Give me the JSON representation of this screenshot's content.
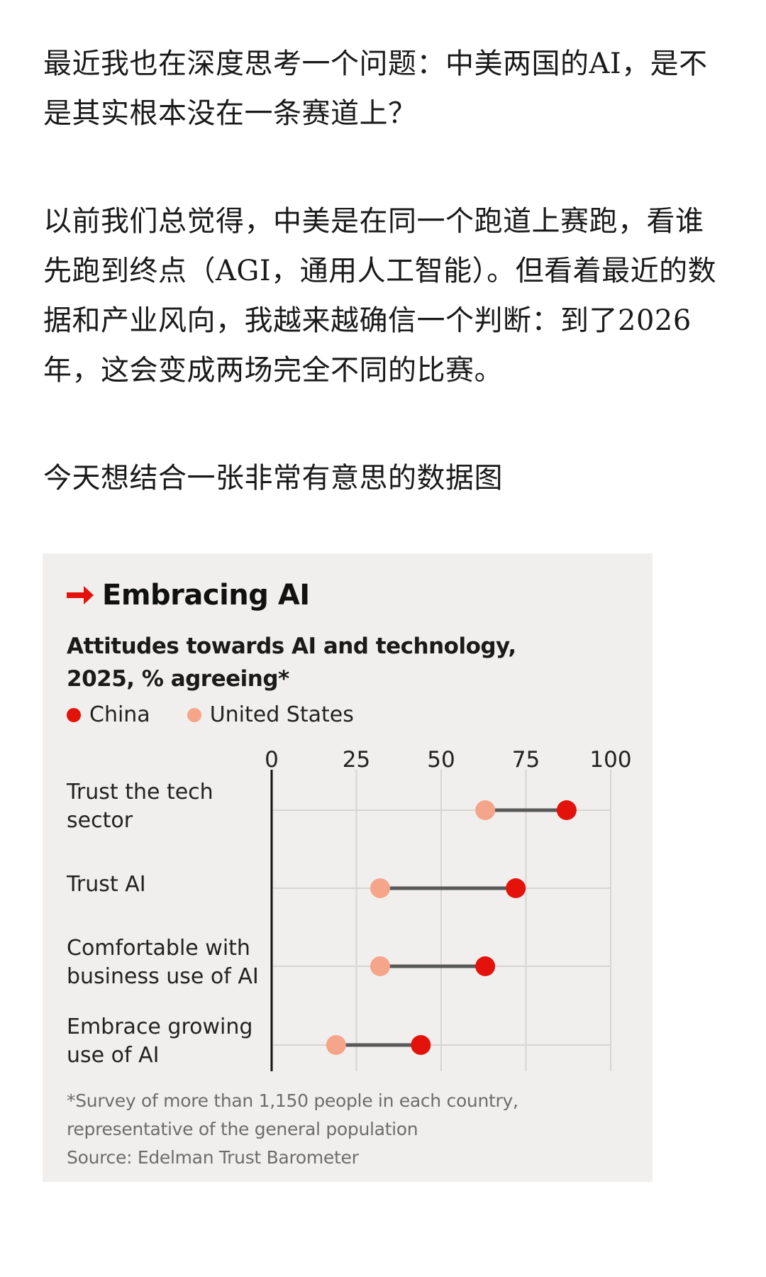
{
  "article": {
    "paragraphs": [
      "最近我也在深度思考一个问题：中美两国的AI，是不是其实根本没在一条赛道上？",
      "以前我们总觉得，中美是在同一个跑道上赛跑，看谁先跑到终点（AGI，通用人工智能）。但看着最近的数据和产业风向，我越来越确信一个判断：到了2026年，这会变成两场完全不同的比赛。",
      "今天想结合一张非常有意思的数据图"
    ]
  },
  "figure": {
    "title": "Embracing AI",
    "subtitle_line1": "Attitudes towards AI and technology,",
    "subtitle_line2": "2025, % agreeing*",
    "background_color": "#f0efed",
    "arrow_color": "#e3120b",
    "icon": "arrow-right-icon",
    "footnote_line1": "*Survey of more than 1,150 people in each country,",
    "footnote_line2": "representative of the general population",
    "source": "Source: Edelman Trust Barometer"
  },
  "chart_data": {
    "type": "scatter",
    "subtype": "dumbbell",
    "title": "Embracing AI",
    "subtitle": "Attitudes towards AI and technology, 2025, % agreeing*",
    "x_ticks": [
      0,
      25,
      50,
      75,
      100
    ],
    "xlim": [
      0,
      100
    ],
    "grid": true,
    "legend_placement": "top-left",
    "categories": [
      [
        "Trust the tech",
        "sector"
      ],
      [
        "Trust AI"
      ],
      [
        "Comfortable with",
        "business use of AI"
      ],
      [
        "Embrace growing",
        "use of AI"
      ]
    ],
    "series": [
      {
        "name": "China",
        "color": "#e3120b",
        "values": [
          87,
          72,
          63,
          44
        ]
      },
      {
        "name": "United States",
        "color": "#f4a58a",
        "values": [
          63,
          32,
          32,
          19
        ]
      }
    ],
    "connector_color": "#595959"
  }
}
